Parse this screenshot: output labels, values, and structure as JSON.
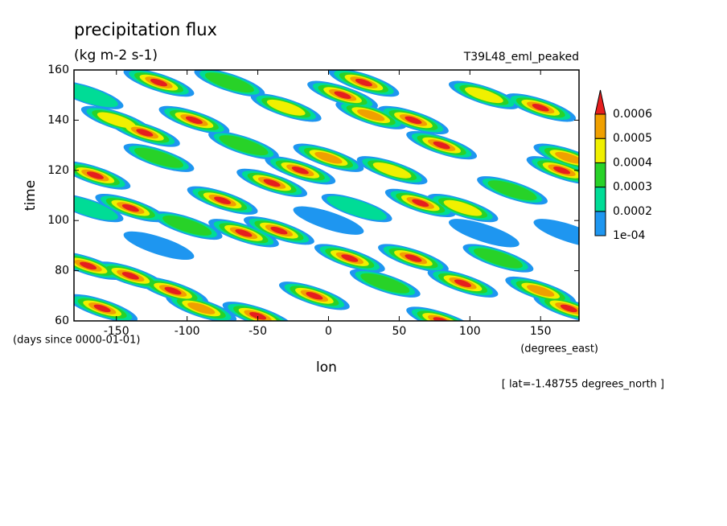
{
  "chart_data": {
    "type": "contour",
    "title": "precipitation flux",
    "units": "(kg m-2 s-1)",
    "experiment": "T39L48_eml_peaked",
    "xlabel": "lon",
    "ylabel": "time",
    "time_units": "(days since 0000-01-01)",
    "lon_units": "(degrees_east)",
    "annotation": "[ lat=-1.48755 degrees_north ]",
    "xlim": [
      -180,
      177.1875
    ],
    "xticks": [
      -150,
      -100,
      -50,
      0,
      50,
      100,
      150
    ],
    "ylim": [
      60,
      160
    ],
    "yticks": [
      60,
      80,
      100,
      120,
      140,
      160
    ],
    "levels": [
      {
        "value": 0.0001,
        "label": "1e-04"
      },
      0.0002,
      0.0003,
      0.0004,
      0.0005,
      0.0006
    ],
    "colors": [
      "#1e96f0",
      "#00dc96",
      "#28d228",
      "#f0f000",
      "#f0a000",
      "#e61e1e"
    ],
    "features": {
      "lon": [
        -170,
        -150,
        -130,
        -120,
        -165,
        -140,
        -100,
        -170,
        -140,
        -110,
        -90,
        -160,
        -60,
        -35,
        -20,
        0,
        -40,
        -75,
        -95,
        -60,
        -30,
        10,
        25,
        30,
        60,
        80,
        45,
        65,
        95,
        130,
        165,
        150,
        170,
        110,
        20,
        -10,
        15,
        40,
        60,
        95,
        120,
        150,
        170,
        -120,
        -70,
        80,
        -50,
        0,
        110,
        -120,
        170,
        -170
      ],
      "time": [
        150,
        140,
        135,
        125,
        118,
        105,
        98,
        82,
        78,
        72,
        65,
        65,
        95,
        96,
        120,
        125,
        115,
        108,
        140,
        130,
        145,
        150,
        155,
        142,
        140,
        130,
        120,
        107,
        105,
        112,
        120,
        145,
        125,
        150,
        105,
        70,
        85,
        75,
        85,
        75,
        85,
        72,
        65,
        155,
        155,
        60,
        62,
        100,
        95,
        90,
        95,
        105
      ],
      "values": [
        0.00025,
        0.0004,
        0.00065,
        0.0003,
        0.00062,
        0.00065,
        0.00035,
        0.00065,
        0.0006,
        0.00065,
        0.0005,
        0.00065,
        0.00062,
        0.00065,
        0.00065,
        0.0005,
        0.00062,
        0.00065,
        0.00065,
        0.0003,
        0.00045,
        0.00065,
        0.00062,
        0.0005,
        0.00065,
        0.00065,
        0.0004,
        0.00062,
        0.0004,
        0.0003,
        0.00065,
        0.00065,
        0.0005,
        0.0004,
        0.0002,
        0.00065,
        0.00062,
        0.0003,
        0.00065,
        0.00065,
        0.0003,
        0.0005,
        0.00065,
        0.00062,
        0.0003,
        0.00065,
        0.00065,
        0.00015,
        0.00015,
        0.00015,
        0.00015,
        0.0002
      ]
    }
  }
}
